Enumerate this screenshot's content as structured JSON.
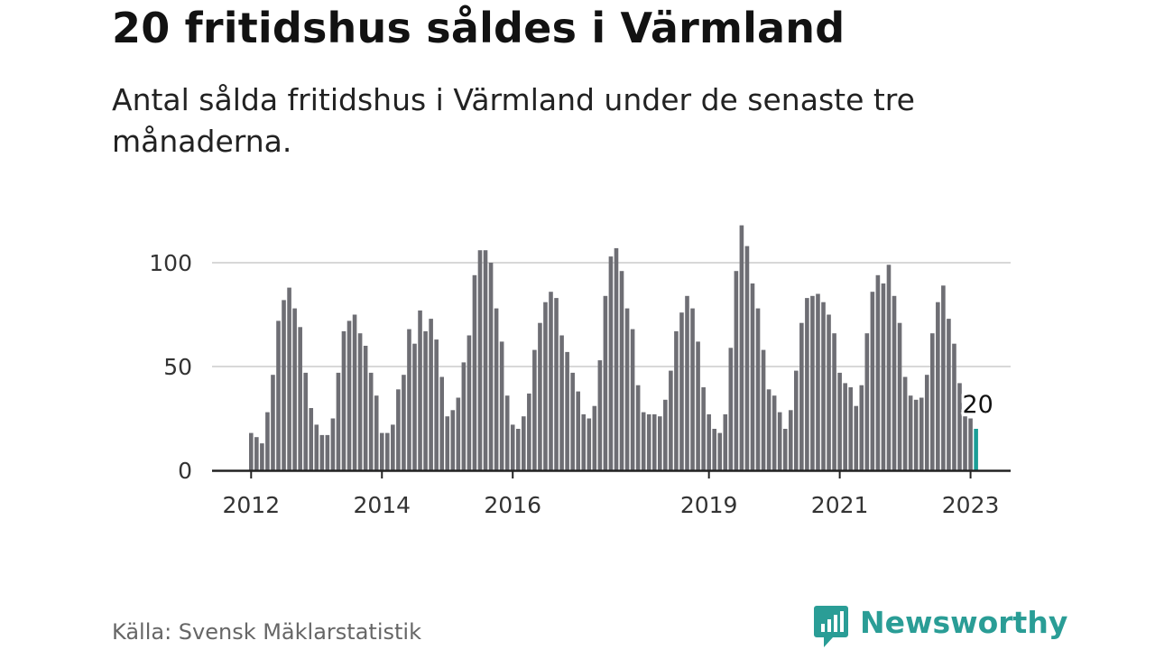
{
  "header": {
    "title": "20 fritidshus såldes i Värmland",
    "subtitle": "Antal sålda fritidshus i Värmland under de senaste tre månaderna."
  },
  "footer": {
    "source": "Källa: Svensk Mäklarstatistik",
    "brand": "Newsworthy",
    "brand_icon": "newsworthy-logo-icon"
  },
  "colors": {
    "bar": "#6e6e74",
    "highlight": "#1a9e96",
    "grid": "#d8d8d8",
    "axis": "#222222",
    "brand": "#2a9d96"
  },
  "chart_data": {
    "type": "bar",
    "title": "",
    "xlabel": "",
    "ylabel": "",
    "ylim": [
      0,
      120
    ],
    "yticks": [
      0,
      50,
      100
    ],
    "xticks": [
      "2012",
      "2014",
      "2016",
      "2019",
      "2021",
      "2023"
    ],
    "grid": true,
    "highlight_label": "20",
    "series": [
      {
        "values": [
          18,
          16,
          13,
          28,
          46,
          72,
          82,
          88,
          78,
          69,
          47,
          30,
          22,
          17,
          17,
          25,
          47,
          67,
          72,
          75,
          66,
          60,
          47,
          36,
          18,
          18,
          22,
          39,
          46,
          68,
          61,
          77,
          67,
          73,
          63,
          45,
          26,
          29,
          35,
          52,
          65,
          94,
          106,
          106,
          100,
          78,
          62,
          36,
          22,
          20,
          26,
          37,
          58,
          71,
          81,
          86,
          83,
          65,
          57,
          47,
          38,
          27,
          25,
          31,
          53,
          84,
          103,
          107,
          96,
          78,
          68,
          41,
          28,
          27,
          27,
          26,
          34,
          48,
          67,
          76,
          84,
          78,
          62,
          40,
          27,
          20,
          18,
          27,
          59,
          96,
          118,
          108,
          90,
          78,
          58,
          39,
          36,
          28,
          20,
          29,
          48,
          71,
          83,
          84,
          85,
          81,
          75,
          66,
          47,
          42,
          40,
          31,
          41,
          66,
          86,
          94,
          90,
          99,
          84,
          71,
          45,
          36,
          34,
          35,
          46,
          66,
          81,
          89,
          73,
          61,
          42,
          26,
          25,
          20
        ]
      }
    ]
  }
}
